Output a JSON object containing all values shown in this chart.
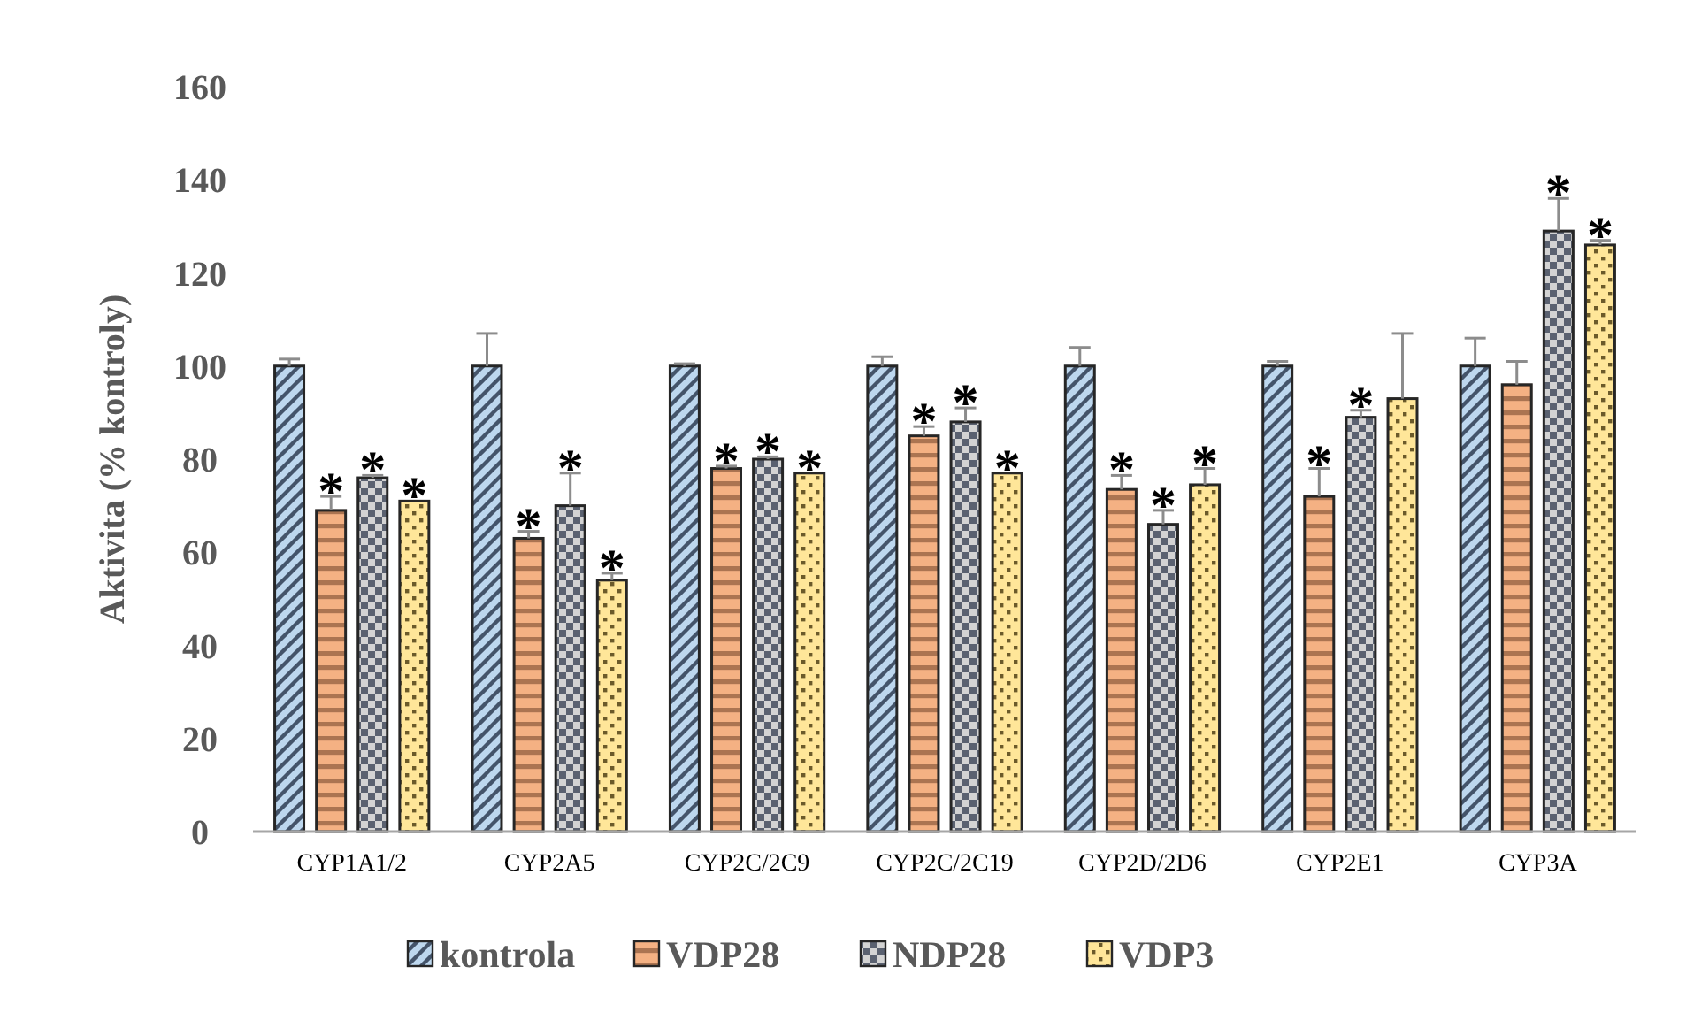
{
  "chart_data": {
    "type": "bar",
    "ylabel": "Aktivita (% kontroly)",
    "categories": [
      "CYP1A1/2",
      "CYP2A5",
      "CYP2C/2C9",
      "CYP2C/2C19",
      "CYP2D/2D6",
      "CYP2E1",
      "CYP3A"
    ],
    "series": [
      {
        "name": "kontrola",
        "color": "#bdd7ee",
        "values": [
          100,
          100,
          100,
          100,
          100,
          100,
          100
        ],
        "errors": [
          1.5,
          7,
          0.5,
          2,
          4,
          1,
          6
        ]
      },
      {
        "name": "VDP28",
        "color": "#f4b183",
        "values": [
          69,
          63,
          78,
          85,
          73.5,
          72,
          96
        ],
        "errors": [
          3,
          1.5,
          0.5,
          2,
          3,
          6,
          5
        ]
      },
      {
        "name": "NDP28",
        "color": "#a6a6a6",
        "values": [
          76,
          70,
          80,
          88,
          66,
          89,
          129
        ],
        "errors": [
          0.5,
          7,
          0.5,
          3,
          3,
          1.5,
          7
        ]
      },
      {
        "name": "VDP3",
        "color": "#ffe699",
        "values": [
          71,
          54,
          77,
          77,
          74.5,
          93,
          126
        ],
        "errors": [
          null,
          1.5,
          null,
          null,
          3.5,
          14,
          1
        ]
      }
    ],
    "ylim": [
      0,
      160
    ],
    "yticks": [
      0,
      20,
      40,
      60,
      80,
      100,
      120,
      140,
      160
    ],
    "grid": false,
    "legend": "bottom",
    "annotations": [
      {
        "text": "*",
        "x": "CYP1A1/2",
        "y": 69
      },
      {
        "text": "*",
        "x": "CYP1A1/2",
        "y": 76
      },
      {
        "text": "*",
        "x": "CYP1A1/2",
        "y": 71
      },
      {
        "text": "*",
        "x": "CYP2A5",
        "y": 63
      },
      {
        "text": "*",
        "x": "CYP2A5",
        "y": 70
      },
      {
        "text": "*",
        "x": "CYP2A5",
        "y": 54
      },
      {
        "text": "*",
        "x": "CYP2C/2C9",
        "y": 78
      },
      {
        "text": "*",
        "x": "CYP2C/2C9",
        "y": 80
      },
      {
        "text": "*",
        "x": "CYP2C/2C9",
        "y": 77
      },
      {
        "text": "*",
        "x": "CYP2C/2C19",
        "y": 85
      },
      {
        "text": "*",
        "x": "CYP2C/2C19",
        "y": 88
      },
      {
        "text": "*",
        "x": "CYP2C/2C19",
        "y": 77
      },
      {
        "text": "*",
        "x": "CYP2D/2D6",
        "y": 73.5
      },
      {
        "text": "*",
        "x": "CYP2D/2D6",
        "y": 66
      },
      {
        "text": "*",
        "x": "CYP2D/2D6",
        "y": 74.5
      },
      {
        "text": "*",
        "x": "CYP2E1",
        "y": 72
      },
      {
        "text": "*",
        "x": "CYP2E1",
        "y": 89
      },
      {
        "text": "*",
        "x": "CYP3A",
        "y": 129
      },
      {
        "text": "*",
        "x": "CYP3A",
        "y": 126
      }
    ]
  }
}
